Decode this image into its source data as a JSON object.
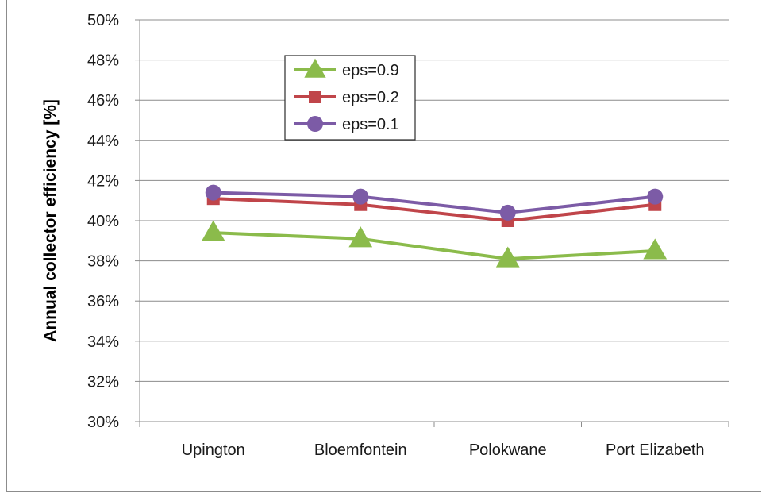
{
  "chart_data": {
    "type": "line",
    "title": "",
    "xlabel": "",
    "ylabel": "Annual collector efficiency [%]",
    "categories": [
      "Upington",
      "Bloemfontein",
      "Polokwane",
      "Port Elizabeth"
    ],
    "ylim": [
      30,
      50
    ],
    "ytick_step": 2,
    "ytick_suffix": "%",
    "grid": "horizontal",
    "legend_position": "top-left-inside",
    "series": [
      {
        "name": "eps=0.9",
        "marker": "triangle",
        "color": "#8bbb4b",
        "values": [
          39.4,
          39.1,
          38.1,
          38.5
        ]
      },
      {
        "name": "eps=0.2",
        "marker": "square",
        "color": "#c0454a",
        "values": [
          41.1,
          40.8,
          40.0,
          40.8
        ]
      },
      {
        "name": "eps=0.1",
        "marker": "circle",
        "color": "#7c5ba6",
        "values": [
          41.4,
          41.2,
          40.4,
          41.2
        ]
      }
    ]
  }
}
